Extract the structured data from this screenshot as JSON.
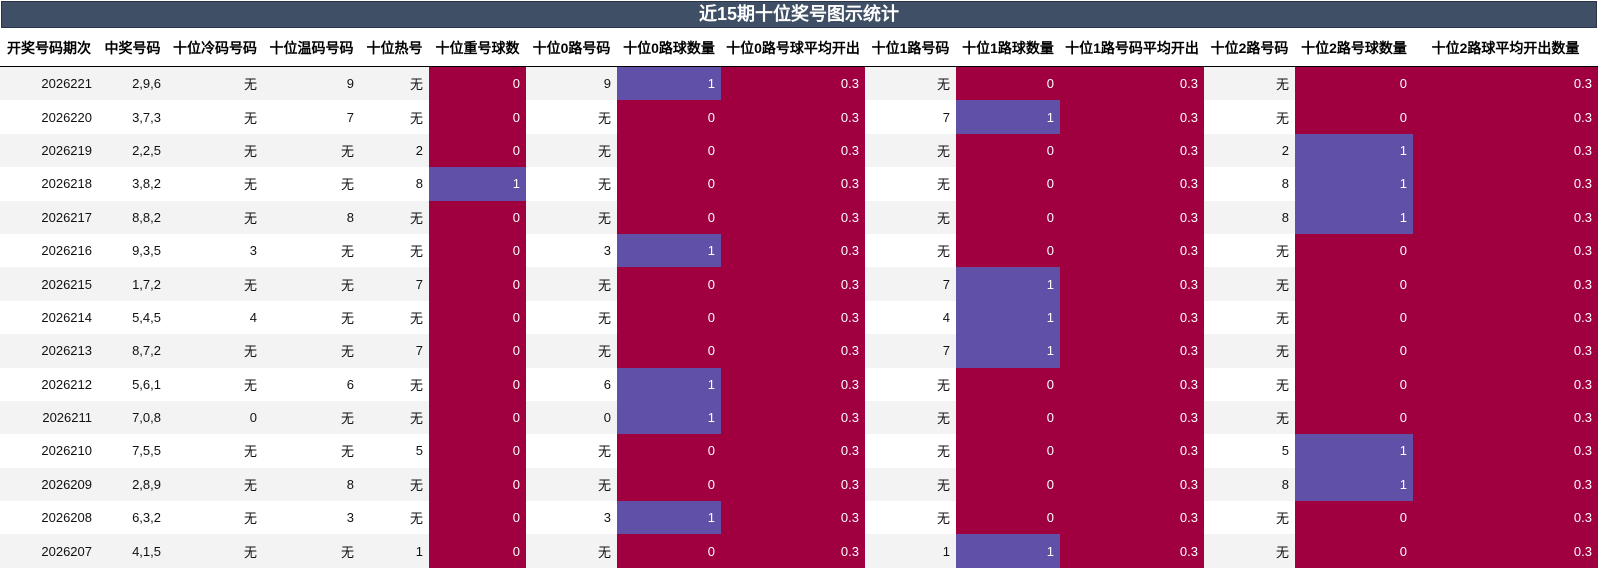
{
  "title": "近15期十位奖号图示统计",
  "colors": {
    "title_bg": "#3f4f66",
    "red": "#a10040",
    "purple": "#6050a8"
  },
  "columns": [
    {
      "label": "开奖号码期次",
      "type": "plain"
    },
    {
      "label": "中奖号码",
      "type": "plain"
    },
    {
      "label": "十位冷码号码",
      "type": "plain"
    },
    {
      "label": "十位温码号码",
      "type": "plain"
    },
    {
      "label": "十位热号",
      "type": "plain"
    },
    {
      "label": "十位重号球数",
      "type": "count"
    },
    {
      "label": "十位0路号码",
      "type": "plain"
    },
    {
      "label": "十位0路球数量",
      "type": "count"
    },
    {
      "label": "十位0路号球平均开出",
      "type": "avg"
    },
    {
      "label": "十位1路号码",
      "type": "plain"
    },
    {
      "label": "十位1路球数量",
      "type": "count"
    },
    {
      "label": "十位1路号码平均开出",
      "type": "avg"
    },
    {
      "label": "十位2路号码",
      "type": "plain"
    },
    {
      "label": "十位2路号球数量",
      "type": "count"
    },
    {
      "label": "十位2路球平均开出数量",
      "type": "avg"
    }
  ],
  "rows": [
    [
      "2026221",
      "2,9,6",
      "无",
      "9",
      "无",
      "0",
      "9",
      "1",
      "0.3",
      "无",
      "0",
      "0.3",
      "无",
      "0",
      "0.3"
    ],
    [
      "2026220",
      "3,7,3",
      "无",
      "7",
      "无",
      "0",
      "无",
      "0",
      "0.3",
      "7",
      "1",
      "0.3",
      "无",
      "0",
      "0.3"
    ],
    [
      "2026219",
      "2,2,5",
      "无",
      "无",
      "2",
      "0",
      "无",
      "0",
      "0.3",
      "无",
      "0",
      "0.3",
      "2",
      "1",
      "0.3"
    ],
    [
      "2026218",
      "3,8,2",
      "无",
      "无",
      "8",
      "1",
      "无",
      "0",
      "0.3",
      "无",
      "0",
      "0.3",
      "8",
      "1",
      "0.3"
    ],
    [
      "2026217",
      "8,8,2",
      "无",
      "8",
      "无",
      "0",
      "无",
      "0",
      "0.3",
      "无",
      "0",
      "0.3",
      "8",
      "1",
      "0.3"
    ],
    [
      "2026216",
      "9,3,5",
      "3",
      "无",
      "无",
      "0",
      "3",
      "1",
      "0.3",
      "无",
      "0",
      "0.3",
      "无",
      "0",
      "0.3"
    ],
    [
      "2026215",
      "1,7,2",
      "无",
      "无",
      "7",
      "0",
      "无",
      "0",
      "0.3",
      "7",
      "1",
      "0.3",
      "无",
      "0",
      "0.3"
    ],
    [
      "2026214",
      "5,4,5",
      "4",
      "无",
      "无",
      "0",
      "无",
      "0",
      "0.3",
      "4",
      "1",
      "0.3",
      "无",
      "0",
      "0.3"
    ],
    [
      "2026213",
      "8,7,2",
      "无",
      "无",
      "7",
      "0",
      "无",
      "0",
      "0.3",
      "7",
      "1",
      "0.3",
      "无",
      "0",
      "0.3"
    ],
    [
      "2026212",
      "5,6,1",
      "无",
      "6",
      "无",
      "0",
      "6",
      "1",
      "0.3",
      "无",
      "0",
      "0.3",
      "无",
      "0",
      "0.3"
    ],
    [
      "2026211",
      "7,0,8",
      "0",
      "无",
      "无",
      "0",
      "0",
      "1",
      "0.3",
      "无",
      "0",
      "0.3",
      "无",
      "0",
      "0.3"
    ],
    [
      "2026210",
      "7,5,5",
      "无",
      "无",
      "5",
      "0",
      "无",
      "0",
      "0.3",
      "无",
      "0",
      "0.3",
      "5",
      "1",
      "0.3"
    ],
    [
      "2026209",
      "2,8,9",
      "无",
      "8",
      "无",
      "0",
      "无",
      "0",
      "0.3",
      "无",
      "0",
      "0.3",
      "8",
      "1",
      "0.3"
    ],
    [
      "2026208",
      "6,3,2",
      "无",
      "3",
      "无",
      "0",
      "3",
      "1",
      "0.3",
      "无",
      "0",
      "0.3",
      "无",
      "0",
      "0.3"
    ],
    [
      "2026207",
      "4,1,5",
      "无",
      "无",
      "1",
      "0",
      "无",
      "0",
      "0.3",
      "1",
      "1",
      "0.3",
      "无",
      "0",
      "0.3"
    ]
  ]
}
